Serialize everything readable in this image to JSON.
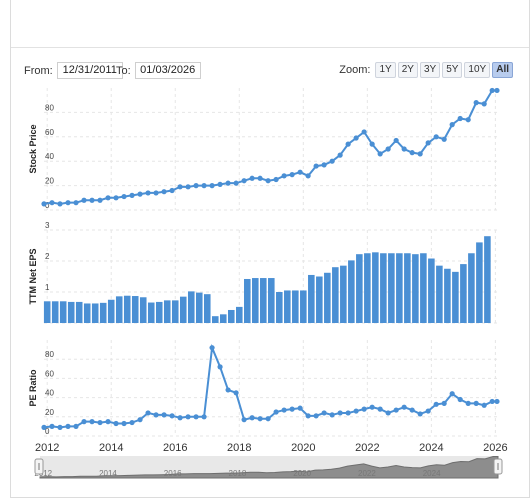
{
  "range": {
    "from_label": "From:",
    "from_value": "12/31/2011",
    "to_label": "To:",
    "to_value": "01/03/2026"
  },
  "zoom": {
    "label": "Zoom:",
    "buttons": [
      "1Y",
      "2Y",
      "3Y",
      "5Y",
      "10Y",
      "All"
    ],
    "active": "All"
  },
  "colors": {
    "series": "#4a8fd4",
    "bar": "#4a8fd4",
    "grid": "#e6e6e6",
    "navigator": "#8d8d8d"
  },
  "chart_data": [
    {
      "type": "line",
      "title": "",
      "ylabel": "Stock Price",
      "ylim": [
        0,
        100
      ],
      "yticks": [
        0,
        20,
        40,
        60,
        80
      ],
      "xlim": [
        2011.9,
        2026.05
      ],
      "x": [
        2011.9,
        2012.15,
        2012.4,
        2012.65,
        2012.9,
        2013.15,
        2013.4,
        2013.65,
        2013.9,
        2014.15,
        2014.4,
        2014.65,
        2014.9,
        2015.15,
        2015.4,
        2015.65,
        2015.9,
        2016.15,
        2016.4,
        2016.65,
        2016.9,
        2017.15,
        2017.4,
        2017.65,
        2017.9,
        2018.15,
        2018.4,
        2018.65,
        2018.9,
        2019.15,
        2019.4,
        2019.65,
        2019.9,
        2020.15,
        2020.4,
        2020.65,
        2020.9,
        2021.15,
        2021.4,
        2021.65,
        2021.9,
        2022.15,
        2022.4,
        2022.65,
        2022.9,
        2023.15,
        2023.4,
        2023.65,
        2023.9,
        2024.15,
        2024.4,
        2024.65,
        2024.9,
        2025.15,
        2025.4,
        2025.65,
        2025.9,
        2026.05
      ],
      "y": [
        5,
        6,
        5,
        6,
        6,
        8,
        8,
        8,
        10,
        10,
        11,
        12,
        13,
        14,
        14,
        15,
        16,
        19,
        19,
        20,
        20,
        20,
        21,
        22,
        22,
        24,
        26,
        26,
        24,
        25,
        28,
        29,
        31,
        28,
        36,
        37,
        40,
        45,
        54,
        59,
        64,
        54,
        46,
        50,
        57,
        50,
        47,
        46,
        55,
        60,
        58,
        70,
        75,
        74,
        88,
        87,
        98,
        98
      ]
    },
    {
      "type": "bar",
      "title": "",
      "ylabel": "TTM Net EPS",
      "ylim": [
        0,
        3
      ],
      "yticks": [
        0,
        1,
        2,
        3
      ],
      "xlim": [
        2011.9,
        2026.05
      ],
      "x": [
        2012.0,
        2012.25,
        2012.5,
        2012.75,
        2013.0,
        2013.25,
        2013.5,
        2013.75,
        2014.0,
        2014.25,
        2014.5,
        2014.75,
        2015.0,
        2015.25,
        2015.5,
        2015.75,
        2016.0,
        2016.25,
        2016.5,
        2016.75,
        2017.0,
        2017.25,
        2017.5,
        2017.75,
        2018.0,
        2018.25,
        2018.5,
        2018.75,
        2019.0,
        2019.25,
        2019.5,
        2019.75,
        2020.0,
        2020.25,
        2020.5,
        2020.75,
        2021.0,
        2021.25,
        2021.5,
        2021.75,
        2022.0,
        2022.25,
        2022.5,
        2022.75,
        2023.0,
        2023.25,
        2023.5,
        2023.75,
        2024.0,
        2024.25,
        2024.5,
        2024.75,
        2025.0,
        2025.25,
        2025.5,
        2025.75
      ],
      "values": [
        0.7,
        0.7,
        0.7,
        0.68,
        0.68,
        0.63,
        0.63,
        0.65,
        0.75,
        0.86,
        0.88,
        0.87,
        0.83,
        0.66,
        0.68,
        0.73,
        0.73,
        0.85,
        1.02,
        0.98,
        0.93,
        0.22,
        0.28,
        0.42,
        0.52,
        1.42,
        1.45,
        1.45,
        1.45,
        1.0,
        1.05,
        1.05,
        1.05,
        1.55,
        1.5,
        1.62,
        1.8,
        1.85,
        2.02,
        2.22,
        2.25,
        2.28,
        2.25,
        2.25,
        2.25,
        2.25,
        2.22,
        2.25,
        2.08,
        1.85,
        1.75,
        1.65,
        1.9,
        2.25,
        2.6,
        2.8
      ]
    },
    {
      "type": "line",
      "title": "",
      "ylabel": "PE Ratio",
      "ylim": [
        0,
        100
      ],
      "yticks": [
        0,
        20,
        40,
        60,
        80
      ],
      "xlim": [
        2011.9,
        2026.05
      ],
      "xticks": [
        2012,
        2014,
        2016,
        2018,
        2020,
        2022,
        2024,
        2026
      ],
      "x": [
        2011.9,
        2012.15,
        2012.4,
        2012.65,
        2012.9,
        2013.15,
        2013.4,
        2013.65,
        2013.9,
        2014.15,
        2014.4,
        2014.65,
        2014.9,
        2015.15,
        2015.4,
        2015.65,
        2015.9,
        2016.15,
        2016.4,
        2016.65,
        2016.9,
        2017.15,
        2017.4,
        2017.65,
        2017.9,
        2018.15,
        2018.4,
        2018.65,
        2018.9,
        2019.15,
        2019.4,
        2019.65,
        2019.9,
        2020.15,
        2020.4,
        2020.65,
        2020.9,
        2021.15,
        2021.4,
        2021.65,
        2021.9,
        2022.15,
        2022.4,
        2022.65,
        2022.9,
        2023.15,
        2023.4,
        2023.65,
        2023.9,
        2024.15,
        2024.4,
        2024.65,
        2024.9,
        2025.15,
        2025.4,
        2025.65,
        2025.9,
        2026.05
      ],
      "y": [
        9,
        10,
        9,
        10,
        10,
        15,
        15,
        14,
        15,
        13,
        13,
        14,
        17,
        24,
        22,
        22,
        21,
        19,
        20,
        20,
        20,
        92,
        72,
        48,
        45,
        17,
        19,
        18,
        18,
        25,
        27,
        28,
        29,
        21,
        21,
        24,
        22,
        24,
        24,
        26,
        28,
        30,
        28,
        24,
        27,
        30,
        27,
        23,
        26,
        33,
        34,
        44,
        38,
        34,
        34,
        32,
        36,
        36
      ]
    }
  ],
  "navigator": {
    "ticks": [
      "2012",
      "2014",
      "2016",
      "2018",
      "2020",
      "2022",
      "2024"
    ]
  }
}
